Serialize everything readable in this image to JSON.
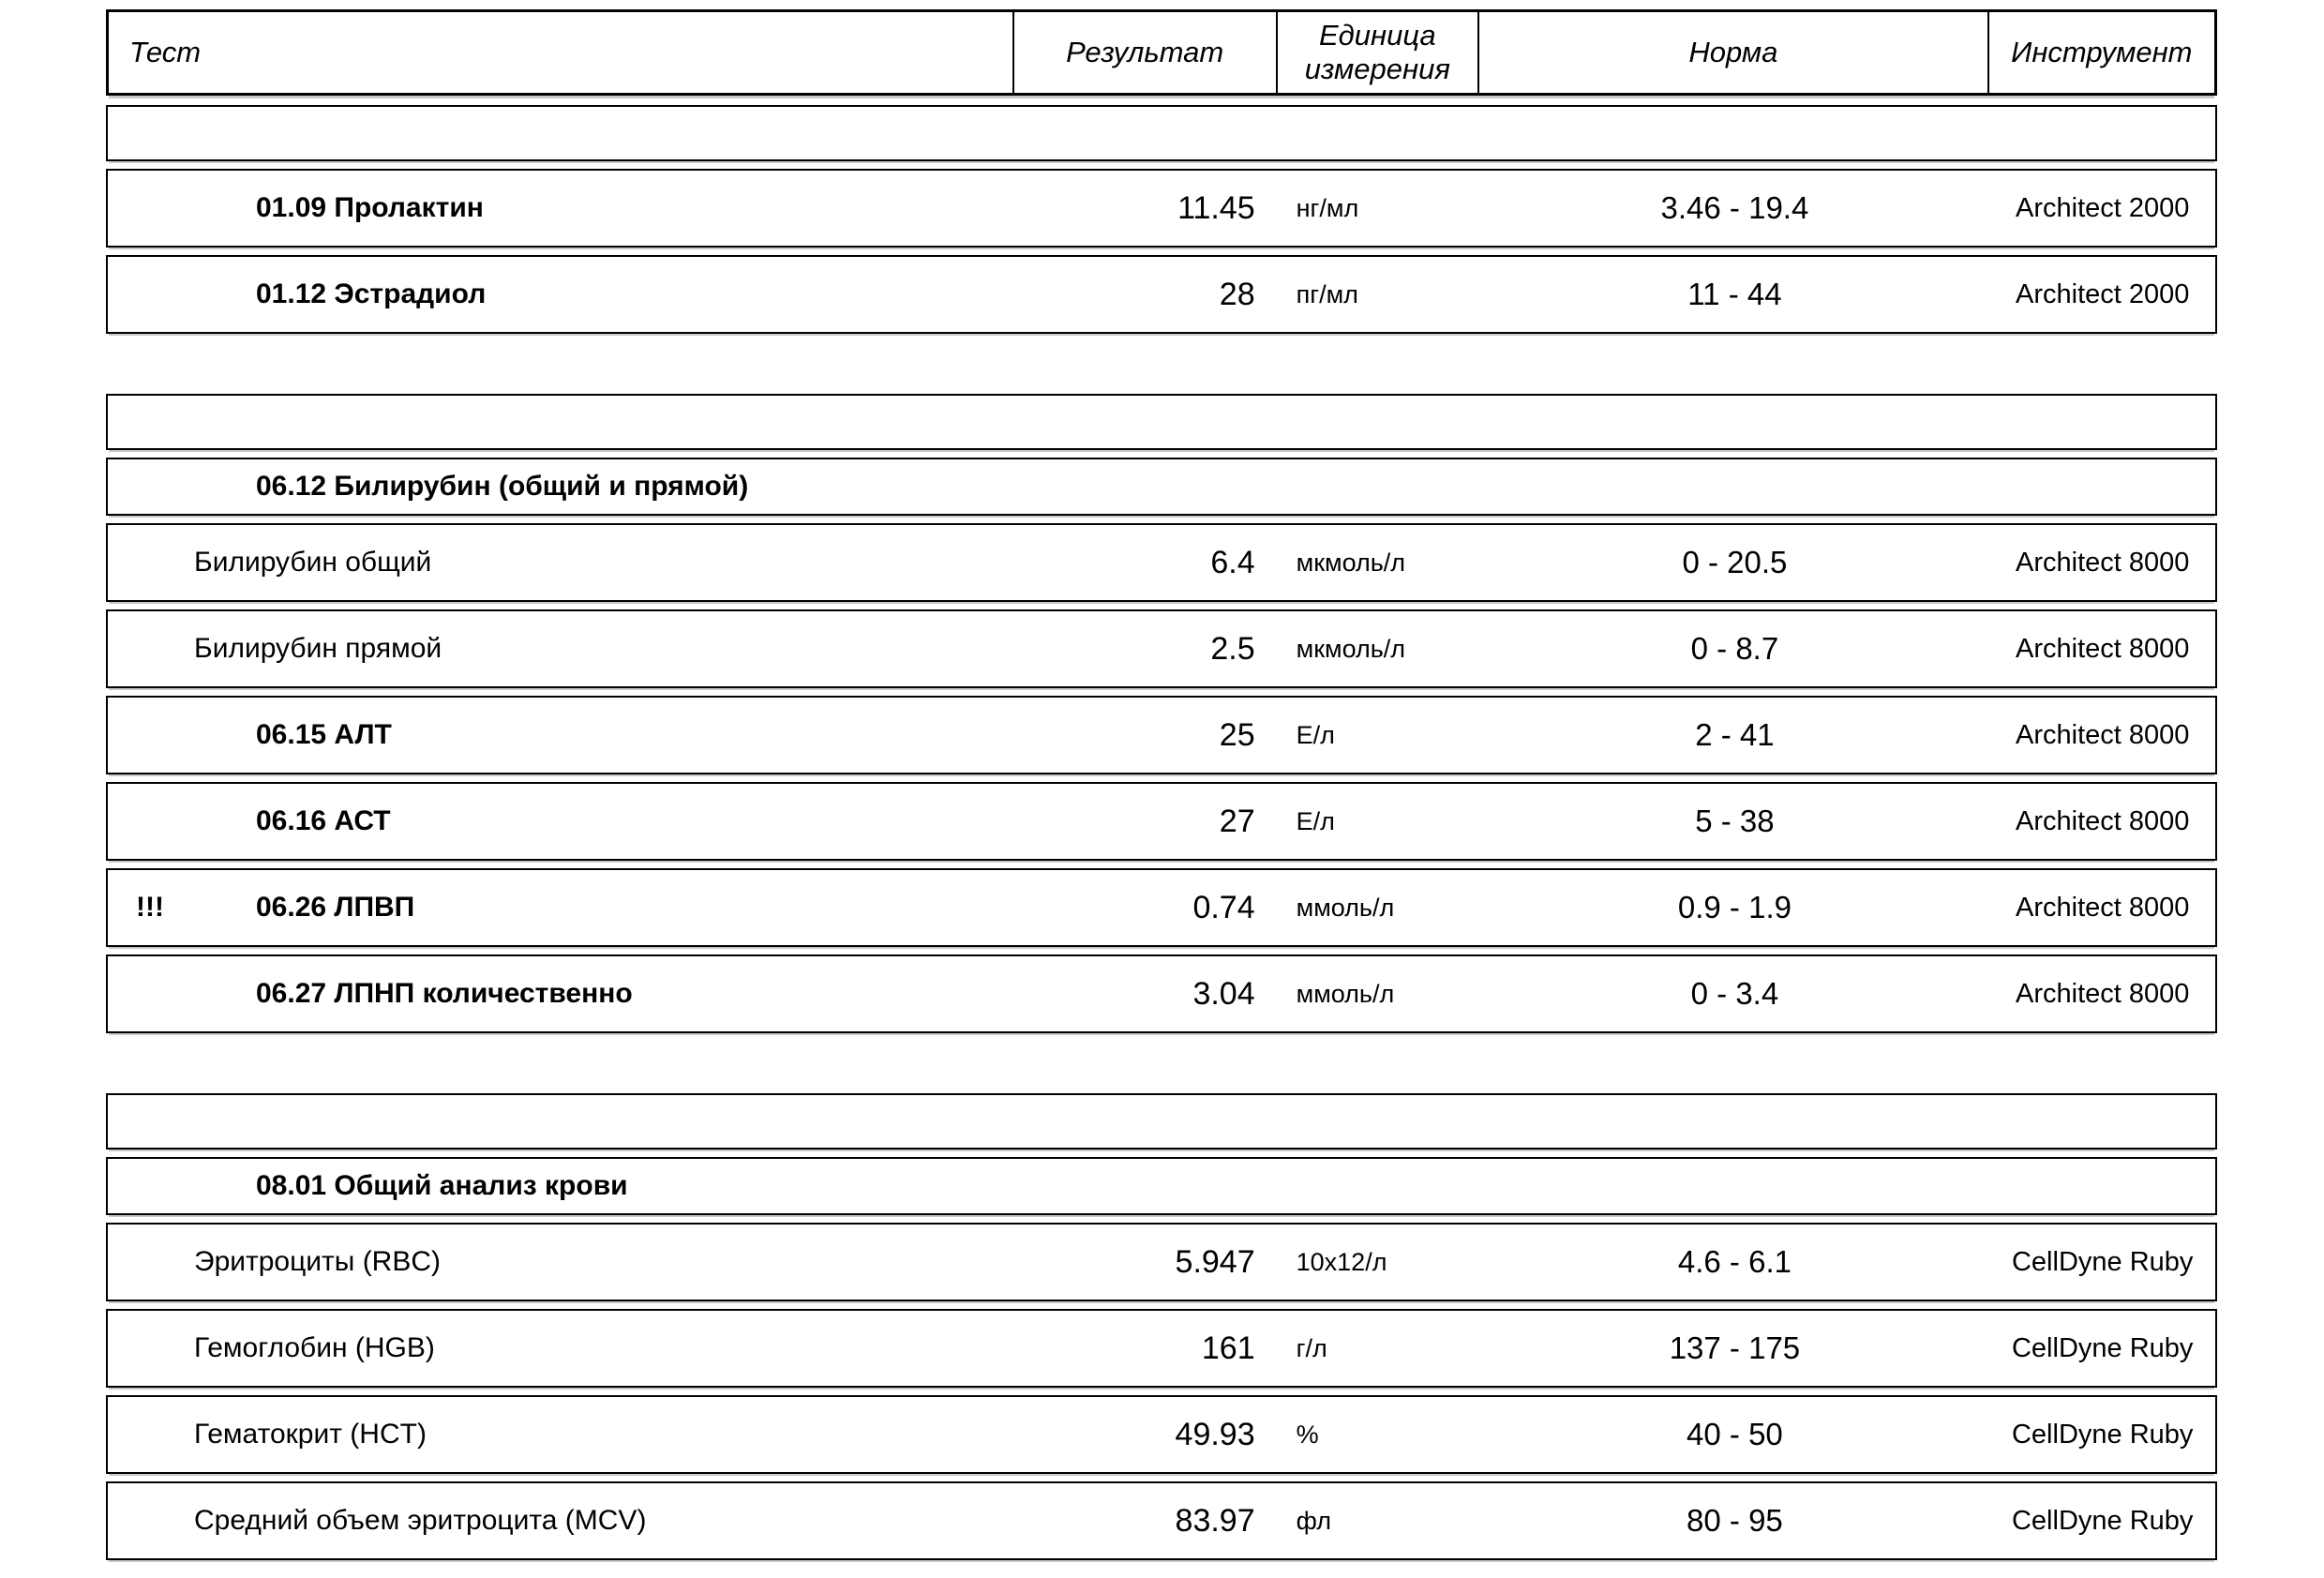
{
  "table": {
    "columns": [
      "Тест",
      "Результат",
      "Единица измерения",
      "Норма",
      "Инструмент"
    ],
    "blocks": [
      {
        "section": null,
        "rows": [
          {
            "marker": "",
            "name": "01.09 Пролактин",
            "bold": true,
            "result": "11.45",
            "unit": "нг/мл",
            "norm": "3.46 - 19.4",
            "instrument": "Architect 2000"
          },
          {
            "marker": "",
            "name": "01.12 Эстрадиол",
            "bold": true,
            "result": "28",
            "unit": "пг/мл",
            "norm": "11 - 44",
            "instrument": "Architect 2000"
          }
        ]
      },
      {
        "section": "06.12 Билирубин (общий и прямой)",
        "rows": [
          {
            "marker": "",
            "name": "Билирубин общий",
            "bold": false,
            "result": "6.4",
            "unit": "мкмоль/л",
            "norm": "0 - 20.5",
            "instrument": "Architect 8000"
          },
          {
            "marker": "",
            "name": "Билирубин прямой",
            "bold": false,
            "result": "2.5",
            "unit": "мкмоль/л",
            "norm": "0 - 8.7",
            "instrument": "Architect 8000"
          },
          {
            "marker": "",
            "name": "06.15 АЛТ",
            "bold": true,
            "result": "25",
            "unit": "Е/л",
            "norm": "2 - 41",
            "instrument": "Architect 8000"
          },
          {
            "marker": "",
            "name": "06.16 АСТ",
            "bold": true,
            "result": "27",
            "unit": "Е/л",
            "norm": "5 - 38",
            "instrument": "Architect 8000"
          },
          {
            "marker": "!!!",
            "name": "06.26 ЛПВП",
            "bold": true,
            "result": "0.74",
            "unit": "ммоль/л",
            "norm": "0.9 - 1.9",
            "instrument": "Architect 8000"
          },
          {
            "marker": "",
            "name": "06.27 ЛПНП количественно",
            "bold": true,
            "result": "3.04",
            "unit": "ммоль/л",
            "norm": "0 - 3.4",
            "instrument": "Architect 8000"
          }
        ]
      },
      {
        "section": "08.01 Общий анализ крови",
        "rows": [
          {
            "marker": "",
            "name": "Эритроциты (RBC)",
            "bold": false,
            "result": "5.947",
            "unit": "10x12/л",
            "norm": "4.6 - 6.1",
            "instrument": "CellDyne Ruby"
          },
          {
            "marker": "",
            "name": "Гемоглобин (HGB)",
            "bold": false,
            "result": "161",
            "unit": "г/л",
            "norm": "137 - 175",
            "instrument": "CellDyne Ruby"
          },
          {
            "marker": "",
            "name": "Гематокрит (HCT)",
            "bold": false,
            "result": "49.93",
            "unit": "%",
            "norm": "40 - 50",
            "instrument": "CellDyne Ruby"
          },
          {
            "marker": "",
            "name": "Средний объем эритроцита (MCV)",
            "bold": false,
            "result": "83.97",
            "unit": "фл",
            "norm": "80 - 95",
            "instrument": "CellDyne Ruby"
          }
        ]
      }
    ]
  }
}
